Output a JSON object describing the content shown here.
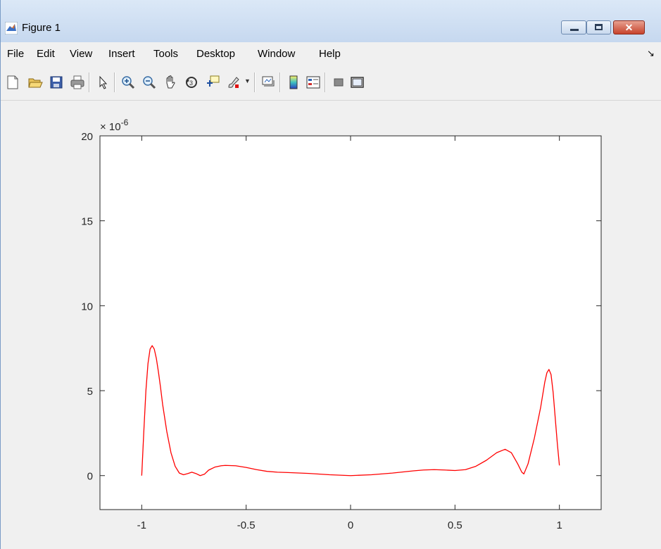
{
  "window": {
    "title": "Figure 1",
    "controls": {
      "close_glyph": "✕"
    }
  },
  "menu": {
    "items": [
      "File",
      "Edit",
      "View",
      "Insert",
      "Tools",
      "Desktop",
      "Window",
      "Help"
    ],
    "overflow_glyph": "↘"
  },
  "toolbar": {
    "buttons": [
      "new-figure-icon",
      "open-file-icon",
      "save-icon",
      "print-icon",
      "pointer-icon",
      "zoom-in-icon",
      "zoom-out-icon",
      "pan-hand-icon",
      "rotate-3d-icon",
      "data-cursor-icon",
      "brush-icon",
      "link-plot-icon",
      "colorbar-icon",
      "legend-icon",
      "hide-plot-tools-icon",
      "show-plot-tools-icon"
    ]
  },
  "colors": {
    "line": "#ff0000",
    "axes_bg": "#ffffff",
    "figure_bg": "#f0f0f0",
    "axis": "#262626"
  },
  "chart_data": {
    "type": "line",
    "title": "",
    "xlabel": "",
    "ylabel": "",
    "y_exponent_label": "× 10^-6",
    "xlim": [
      -1.2,
      1.2
    ],
    "ylim": [
      -2,
      20
    ],
    "xticks": [
      -1,
      -0.5,
      0,
      0.5,
      1
    ],
    "xtick_labels": [
      "-1",
      "-0.5",
      "0",
      "0.5",
      "1"
    ],
    "yticks": [
      0,
      5,
      10,
      15,
      20
    ],
    "ytick_labels": [
      "0",
      "5",
      "10",
      "15",
      "20"
    ],
    "grid": false,
    "series": [
      {
        "x": [
          -1.0,
          -0.99,
          -0.98,
          -0.97,
          -0.96,
          -0.95,
          -0.94,
          -0.93,
          -0.92,
          -0.91,
          -0.9,
          -0.88,
          -0.86,
          -0.84,
          -0.82,
          -0.8,
          -0.78,
          -0.76,
          -0.74,
          -0.72,
          -0.7,
          -0.68,
          -0.65,
          -0.62,
          -0.6,
          -0.55,
          -0.5,
          -0.45,
          -0.4,
          -0.35,
          -0.3,
          -0.2,
          -0.1,
          0.0,
          0.1,
          0.2,
          0.3,
          0.35,
          0.4,
          0.45,
          0.5,
          0.55,
          0.6,
          0.65,
          0.7,
          0.74,
          0.77,
          0.8,
          0.82,
          0.83,
          0.85,
          0.88,
          0.91,
          0.93,
          0.94,
          0.95,
          0.96,
          0.97,
          0.98,
          0.99,
          1.0
        ],
        "y": [
          0.0,
          2.6,
          5.0,
          6.6,
          7.45,
          7.65,
          7.45,
          6.9,
          6.1,
          5.2,
          4.2,
          2.6,
          1.35,
          0.55,
          0.15,
          0.05,
          0.12,
          0.2,
          0.12,
          0.0,
          0.08,
          0.32,
          0.5,
          0.58,
          0.6,
          0.58,
          0.48,
          0.35,
          0.25,
          0.2,
          0.18,
          0.13,
          0.05,
          0.0,
          0.05,
          0.15,
          0.28,
          0.33,
          0.35,
          0.33,
          0.3,
          0.35,
          0.55,
          0.9,
          1.35,
          1.55,
          1.35,
          0.7,
          0.2,
          0.1,
          0.7,
          2.2,
          4.0,
          5.5,
          6.05,
          6.25,
          5.95,
          4.9,
          3.4,
          1.9,
          0.6
        ]
      }
    ]
  }
}
